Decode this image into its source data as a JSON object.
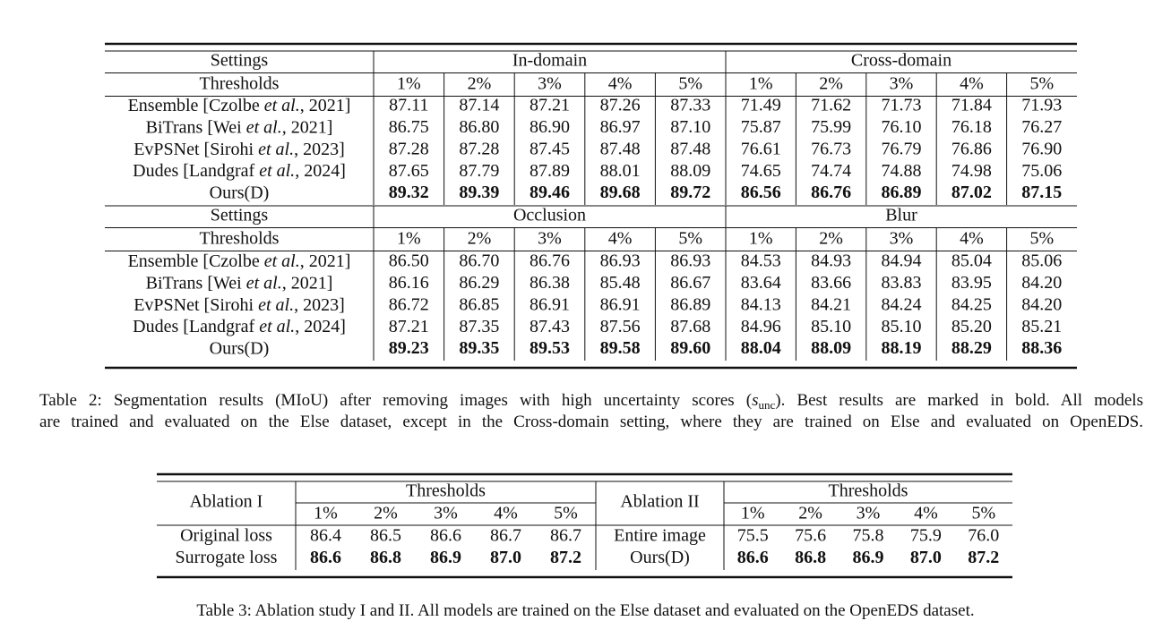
{
  "table2": {
    "sections": [
      {
        "settings_label": "Settings",
        "groups": [
          "In-domain",
          "Cross-domain"
        ],
        "thresholds_label": "Thresholds",
        "thresholds": [
          "1%",
          "2%",
          "3%",
          "4%",
          "5%",
          "1%",
          "2%",
          "3%",
          "4%",
          "5%"
        ],
        "rows": [
          {
            "method": [
              "Ensemble [Czolbe ",
              "et al.",
              ", 2021]"
            ],
            "values": [
              "87.11",
              "87.14",
              "87.21",
              "87.26",
              "87.33",
              "71.49",
              "71.62",
              "71.73",
              "71.84",
              "71.93"
            ],
            "bold": false
          },
          {
            "method": [
              "BiTrans [Wei ",
              "et al.",
              ", 2021]"
            ],
            "values": [
              "86.75",
              "86.80",
              "86.90",
              "86.97",
              "87.10",
              "75.87",
              "75.99",
              "76.10",
              "76.18",
              "76.27"
            ],
            "bold": false
          },
          {
            "method": [
              "EvPSNet [Sirohi ",
              "et al.",
              ", 2023]"
            ],
            "values": [
              "87.28",
              "87.28",
              "87.45",
              "87.48",
              "87.48",
              "76.61",
              "76.73",
              "76.79",
              "76.86",
              "76.90"
            ],
            "bold": false
          },
          {
            "method": [
              "Dudes [Landgraf ",
              "et al.",
              ", 2024]"
            ],
            "values": [
              "87.65",
              "87.79",
              "87.89",
              "88.01",
              "88.09",
              "74.65",
              "74.74",
              "74.88",
              "74.98",
              "75.06"
            ],
            "bold": false
          },
          {
            "method": [
              "Ours(D)"
            ],
            "values": [
              "89.32",
              "89.39",
              "89.46",
              "89.68",
              "89.72",
              "86.56",
              "86.76",
              "86.89",
              "87.02",
              "87.15"
            ],
            "bold": true
          }
        ]
      },
      {
        "settings_label": "Settings",
        "groups": [
          "Occlusion",
          "Blur"
        ],
        "thresholds_label": "Thresholds",
        "thresholds": [
          "1%",
          "2%",
          "3%",
          "4%",
          "5%",
          "1%",
          "2%",
          "3%",
          "4%",
          "5%"
        ],
        "rows": [
          {
            "method": [
              "Ensemble [Czolbe ",
              "et al.",
              ", 2021]"
            ],
            "values": [
              "86.50",
              "86.70",
              "86.76",
              "86.93",
              "86.93",
              "84.53",
              "84.93",
              "84.94",
              "85.04",
              "85.06"
            ],
            "bold": false
          },
          {
            "method": [
              "BiTrans [Wei ",
              "et al.",
              ", 2021]"
            ],
            "values": [
              "86.16",
              "86.29",
              "86.38",
              "85.48",
              "86.67",
              "83.64",
              "83.66",
              "83.83",
              "83.95",
              "84.20"
            ],
            "bold": false
          },
          {
            "method": [
              "EvPSNet [Sirohi ",
              "et al.",
              ", 2023]"
            ],
            "values": [
              "86.72",
              "86.85",
              "86.91",
              "86.91",
              "86.89",
              "84.13",
              "84.21",
              "84.24",
              "84.25",
              "84.20"
            ],
            "bold": false
          },
          {
            "method": [
              "Dudes [Landgraf ",
              "et al.",
              ", 2024]"
            ],
            "values": [
              "87.21",
              "87.35",
              "87.43",
              "87.56",
              "87.68",
              "84.96",
              "85.10",
              "85.10",
              "85.20",
              "85.21"
            ],
            "bold": false
          },
          {
            "method": [
              "Ours(D)"
            ],
            "values": [
              "89.23",
              "89.35",
              "89.53",
              "89.58",
              "89.60",
              "88.04",
              "88.09",
              "88.19",
              "88.29",
              "88.36"
            ],
            "bold": true
          }
        ]
      }
    ],
    "caption": [
      [
        "Table 2: Segmentation results (MIoU) after removing images with high uncertainty scores (",
        "s",
        "unc",
        "). Best results are marked in bold. All models"
      ],
      [
        "are trained and evaluated on the Else dataset, except in the Cross-domain setting, where they are trained on Else and evaluated on OpenEDS."
      ]
    ]
  },
  "table3": {
    "parts": [
      {
        "label": "Ablation I",
        "thresholds_label": "Thresholds",
        "thresholds": [
          "1%",
          "2%",
          "3%",
          "4%",
          "5%"
        ],
        "rows": [
          {
            "method": "Original loss",
            "values": [
              "86.4",
              "86.5",
              "86.6",
              "86.7",
              "86.7"
            ],
            "bold": false
          },
          {
            "method": "Surrogate loss",
            "values": [
              "86.6",
              "86.8",
              "86.9",
              "87.0",
              "87.2"
            ],
            "bold": true
          }
        ]
      },
      {
        "label": "Ablation II",
        "thresholds_label": "Thresholds",
        "thresholds": [
          "1%",
          "2%",
          "3%",
          "4%",
          "5%"
        ],
        "rows": [
          {
            "method": "Entire image",
            "values": [
              "75.5",
              "75.6",
              "75.8",
              "75.9",
              "76.0"
            ],
            "bold": false
          },
          {
            "method": "Ours(D)",
            "values": [
              "86.6",
              "86.8",
              "86.9",
              "87.0",
              "87.2"
            ],
            "bold": true
          }
        ]
      }
    ],
    "caption": "Table 3: Ablation study I and II. All models are trained on the Else dataset and evaluated on the OpenEDS dataset."
  }
}
